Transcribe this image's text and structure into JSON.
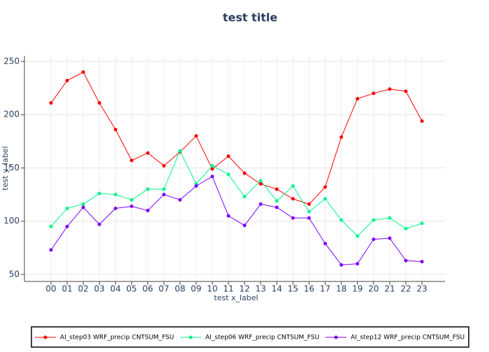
{
  "chart_data": {
    "type": "line",
    "title": "test title",
    "x_label": "test x_label",
    "y_label": "test y_label",
    "categories": [
      "00",
      "01",
      "02",
      "03",
      "04",
      "05",
      "06",
      "07",
      "08",
      "09",
      "10",
      "11",
      "12",
      "13",
      "14",
      "15",
      "16",
      "17",
      "18",
      "19",
      "20",
      "21",
      "22",
      "23"
    ],
    "series": [
      {
        "name": "AI_step03 WRF_precip CNTSUM_FSU",
        "color": "#ff0000",
        "values": [
          211,
          232,
          240,
          211,
          186,
          157,
          164,
          152,
          165,
          180,
          149,
          161,
          145,
          135,
          130,
          121,
          116,
          132,
          179,
          215,
          220,
          224,
          222,
          194
        ]
      },
      {
        "name": "AI_step06 WRF_precip CNTSUM_FSU",
        "color": "#00f58a",
        "values": [
          95,
          112,
          116,
          126,
          125,
          120,
          130,
          130,
          166,
          135,
          152,
          144,
          123,
          138,
          119,
          133,
          109,
          121,
          101,
          86,
          101,
          103,
          93,
          98
        ]
      },
      {
        "name": "AI_step12 WRF_precip CNTSUM_FSU",
        "color": "#7f00ff",
        "values": [
          73,
          95,
          113,
          97,
          112,
          114,
          110,
          125,
          120,
          133,
          142,
          105,
          96,
          116,
          113,
          103,
          103,
          79,
          59,
          60,
          83,
          84,
          63,
          62
        ]
      }
    ],
    "ylim": [
      43.4,
      255.2
    ],
    "yticks": [
      50,
      100,
      150,
      200,
      250
    ],
    "grid": true,
    "legend": "bottom"
  }
}
